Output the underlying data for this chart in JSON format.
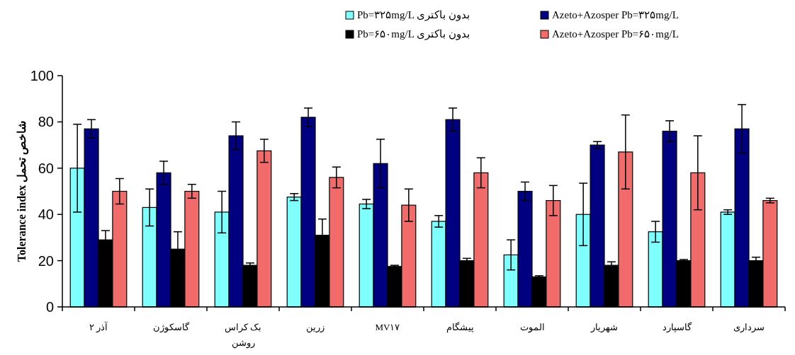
{
  "chart_data": {
    "type": "bar",
    "ylabel": "Tolerance index شاخص تحمل",
    "categories": [
      "آذر ۲",
      "گاسکوژن",
      "بک کراس روشن",
      "زرین",
      "MV۱۷",
      "پیشگام",
      "الموت",
      "شهریار",
      "گاسپارد",
      "سرداری"
    ],
    "series": [
      {
        "name": "Pb=۳۲۵mg/L بدون باکتری",
        "color": "#80ffff",
        "values": [
          60,
          43,
          41,
          47.5,
          44.5,
          37,
          22.5,
          40,
          32.5,
          41
        ],
        "errors": [
          19,
          8,
          9,
          1.5,
          2,
          2.5,
          6.5,
          13.5,
          4.5,
          1
        ]
      },
      {
        "name": "Azeto+Azosper Pb=۳۲۵mg/L",
        "color": "#000080",
        "values": [
          77,
          58,
          74,
          82,
          62,
          81,
          50,
          70,
          76,
          77
        ],
        "errors": [
          4,
          5,
          6,
          4,
          10.5,
          5,
          4,
          1.5,
          4.5,
          10.5
        ]
      },
      {
        "name": "Pb=۶۵۰mg/L بدون باکتری",
        "color": "#000000",
        "values": [
          29,
          25,
          18,
          31,
          17.5,
          20,
          13,
          18,
          20,
          20
        ],
        "errors": [
          4,
          7.5,
          1,
          7,
          0.5,
          1,
          0.5,
          1.5,
          0.5,
          1.5
        ]
      },
      {
        "name": "Azeto+Azosper Pb=۶۵۰mg/L",
        "color": "#f26b6b",
        "values": [
          50,
          50,
          67.5,
          56,
          44,
          58,
          46,
          67,
          58,
          46
        ],
        "errors": [
          5.5,
          3,
          5,
          4.5,
          7,
          6.5,
          6.5,
          16,
          16,
          1
        ]
      }
    ],
    "ylim": [
      0,
      100
    ],
    "yticks": [
      0,
      20,
      40,
      60,
      80,
      100
    ],
    "grid": false,
    "legend": "top"
  }
}
